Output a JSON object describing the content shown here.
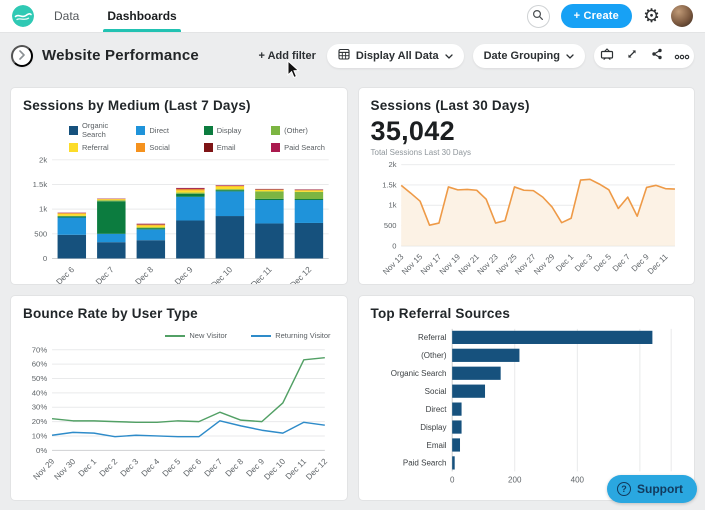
{
  "navbar": {
    "tabs": [
      {
        "label": "Data"
      },
      {
        "label": "Dashboards"
      }
    ],
    "create_label": "+ Create"
  },
  "header": {
    "title": "Website Performance",
    "add_filter_label": "+ Add filter",
    "display_dropdown_label": "Display All Data",
    "date_grouping_label": "Date Grouping"
  },
  "support": {
    "label": "Support",
    "icon": "?"
  },
  "icons": {
    "gear": "⚙",
    "back_chevron": "›"
  },
  "colors": {
    "accent_teal": "#22c2b2",
    "create_blue": "#17a1f5",
    "support_blue": "#2aa7e0",
    "bar_navy": "#16517d"
  },
  "chart_data": [
    {
      "id": "sessions_by_medium",
      "type": "bar",
      "stacked": true,
      "title": "Sessions by Medium (Last 7 Days)",
      "categories": [
        "Dec 6",
        "Dec 7",
        "Dec 8",
        "Dec 9",
        "Dec 10",
        "Dec 11",
        "Dec 12"
      ],
      "series": [
        {
          "name": "Organic Search",
          "color": "#16517d",
          "values": [
            480,
            330,
            370,
            770,
            860,
            710,
            720
          ]
        },
        {
          "name": "Direct",
          "color": "#1f93da",
          "values": [
            350,
            170,
            220,
            480,
            500,
            475,
            465
          ]
        },
        {
          "name": "Display",
          "color": "#0c7c3f",
          "values": [
            25,
            660,
            25,
            60,
            25,
            25,
            20
          ]
        },
        {
          "name": "(Other)",
          "color": "#7cb542",
          "values": [
            10,
            20,
            15,
            25,
            20,
            150,
            145
          ]
        },
        {
          "name": "Referral",
          "color": "#fcdc2a",
          "values": [
            40,
            20,
            40,
            45,
            55,
            30,
            30
          ]
        },
        {
          "name": "Social",
          "color": "#f5921e",
          "values": [
            15,
            5,
            15,
            25,
            10,
            5,
            5
          ]
        },
        {
          "name": "Email",
          "color": "#7e1416",
          "values": [
            5,
            5,
            10,
            10,
            5,
            10,
            10
          ]
        },
        {
          "name": "Paid Search",
          "color": "#aa1a4e",
          "values": [
            5,
            5,
            10,
            15,
            10,
            5,
            5
          ]
        }
      ],
      "ylim": [
        0,
        2000
      ],
      "yticks": [
        {
          "v": 0,
          "label": "0"
        },
        {
          "v": 500,
          "label": "500"
        },
        {
          "v": 1000,
          "label": "1k"
        },
        {
          "v": 1500,
          "label": "1.5k"
        },
        {
          "v": 2000,
          "label": "2k"
        }
      ],
      "legend_position": "top",
      "grid": true
    },
    {
      "id": "sessions_30_days",
      "type": "area",
      "title": "Sessions (Last 30 Days)",
      "big_number": "35,042",
      "subtitle": "Total Sessions Last 30 Days",
      "x": [
        "Nov 13",
        "Nov 14",
        "Nov 15",
        "Nov 16",
        "Nov 17",
        "Nov 18",
        "Nov 19",
        "Nov 20",
        "Nov 21",
        "Nov 22",
        "Nov 23",
        "Nov 24",
        "Nov 25",
        "Nov 26",
        "Nov 27",
        "Nov 28",
        "Nov 29",
        "Nov 30",
        "Dec 1",
        "Dec 2",
        "Dec 3",
        "Dec 4",
        "Dec 5",
        "Dec 6",
        "Dec 7",
        "Dec 8",
        "Dec 9",
        "Dec 10",
        "Dec 11",
        "Dec 12"
      ],
      "label_every": 2,
      "values": [
        1490,
        1300,
        1100,
        510,
        560,
        1450,
        1380,
        1390,
        1370,
        1150,
        560,
        620,
        1450,
        1370,
        1360,
        1200,
        950,
        570,
        680,
        1620,
        1640,
        1520,
        1380,
        920,
        1200,
        730,
        1440,
        1490,
        1410,
        1400
      ],
      "ylim": [
        0,
        2000
      ],
      "yticks": [
        {
          "v": 0,
          "label": "0"
        },
        {
          "v": 500,
          "label": "500"
        },
        {
          "v": 1000,
          "label": "1k"
        },
        {
          "v": 1500,
          "label": "1.5k"
        },
        {
          "v": 2000,
          "label": "2k"
        }
      ],
      "line_color": "#ee9a47",
      "fill_color": "#fcf2e5",
      "grid": true
    },
    {
      "id": "bounce_rate_by_user_type",
      "type": "line",
      "title": "Bounce Rate by User Type",
      "categories": [
        "Nov 29",
        "Nov 30",
        "Dec 1",
        "Dec 2",
        "Dec 3",
        "Dec 4",
        "Dec 5",
        "Dec 6",
        "Dec 7",
        "Dec 8",
        "Dec 9",
        "Dec 10",
        "Dec 11",
        "Dec 12"
      ],
      "series": [
        {
          "name": "New Visitor",
          "color": "#52a065",
          "values": [
            22,
            20.5,
            20.5,
            20,
            19.5,
            19.5,
            20.5,
            20,
            26.5,
            21,
            20,
            33,
            63,
            64.5
          ]
        },
        {
          "name": "Returning Visitor",
          "color": "#2e8bc9",
          "values": [
            10.5,
            12.5,
            12,
            9.5,
            10.5,
            10,
            9.5,
            9.5,
            20.5,
            17,
            14,
            12,
            19.5,
            17.5
          ]
        }
      ],
      "ylim": [
        0,
        70
      ],
      "yticks": [
        {
          "v": 0,
          "label": "0%"
        },
        {
          "v": 10,
          "label": "10%"
        },
        {
          "v": 20,
          "label": "20%"
        },
        {
          "v": 30,
          "label": "30%"
        },
        {
          "v": 40,
          "label": "40%"
        },
        {
          "v": 50,
          "label": "50%"
        },
        {
          "v": 60,
          "label": "60%"
        },
        {
          "v": 70,
          "label": "70%"
        }
      ],
      "legend_position": "top-right",
      "grid": true
    },
    {
      "id": "top_referral_sources",
      "type": "hbar",
      "title": "Top Referral Sources",
      "categories": [
        "Referral",
        "(Other)",
        "Organic Search",
        "Social",
        "Direct",
        "Display",
        "Email",
        "Paid Search"
      ],
      "values": [
        640,
        215,
        155,
        105,
        30,
        30,
        25,
        8
      ],
      "bar_color": "#16517d",
      "xlim": [
        0,
        700
      ],
      "xticks": [
        {
          "v": 0,
          "label": "0"
        },
        {
          "v": 200,
          "label": "200"
        },
        {
          "v": 400,
          "label": "400"
        },
        {
          "v": 600,
          "label": "600"
        }
      ],
      "grid": true
    }
  ]
}
